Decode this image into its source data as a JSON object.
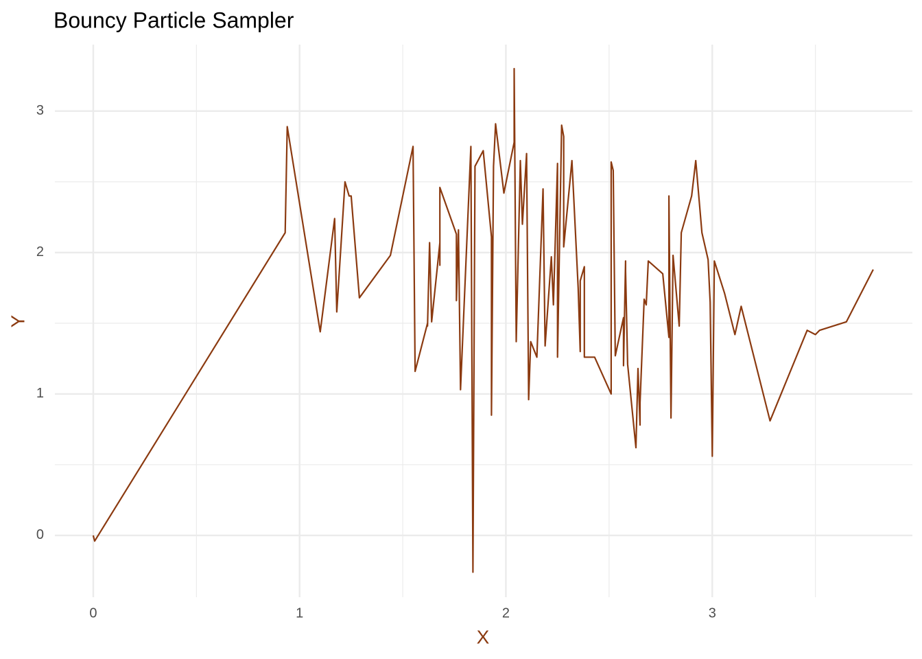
{
  "chart_data": {
    "type": "line",
    "title": "Bouncy Particle Sampler",
    "x_label": "X",
    "y_label": "Y",
    "x": [
      0,
      0.007,
      0.93,
      0.94,
      1.1,
      1.17,
      1.18,
      1.22,
      1.24,
      1.25,
      1.29,
      1.44,
      1.55,
      1.56,
      1.62,
      1.62,
      1.63,
      1.64,
      1.68,
      1.68,
      1.68,
      1.76,
      1.76,
      1.77,
      1.78,
      1.83,
      1.84,
      1.85,
      1.89,
      1.93,
      1.93,
      1.94,
      1.95,
      1.99,
      2.04,
      2.04,
      2.05,
      2.07,
      2.08,
      2.1,
      2.11,
      2.12,
      2.15,
      2.18,
      2.19,
      2.22,
      2.23,
      2.25,
      2.25,
      2.27,
      2.28,
      2.28,
      2.32,
      2.35,
      2.36,
      2.36,
      2.38,
      2.38,
      2.43,
      2.51,
      2.51,
      2.52,
      2.53,
      2.57,
      2.57,
      2.58,
      2.58,
      2.59,
      2.63,
      2.64,
      2.65,
      2.65,
      2.67,
      2.68,
      2.69,
      2.76,
      2.79,
      2.79,
      2.8,
      2.81,
      2.84,
      2.85,
      2.9,
      2.92,
      2.95,
      2.98,
      2.99,
      3.0,
      3.01,
      3.06,
      3.11,
      3.14,
      3.28,
      3.46,
      3.5,
      3.52,
      3.65,
      3.78
    ],
    "series": [
      {
        "name": "Y",
        "color": "#8b3a10",
        "values": [
          0,
          -0.04,
          2.14,
          2.89,
          1.44,
          2.24,
          1.58,
          2.5,
          2.4,
          2.4,
          1.68,
          1.98,
          2.75,
          1.16,
          1.5,
          1.48,
          2.07,
          1.51,
          2.07,
          1.91,
          2.46,
          2.13,
          1.66,
          2.16,
          1.03,
          2.75,
          -0.26,
          2.61,
          2.72,
          2.11,
          0.85,
          2.61,
          2.91,
          2.42,
          2.78,
          3.3,
          1.37,
          2.65,
          2.2,
          2.7,
          0.96,
          1.37,
          1.26,
          2.45,
          1.34,
          1.97,
          1.63,
          2.63,
          1.26,
          2.9,
          2.82,
          2.04,
          2.65,
          1.75,
          1.3,
          1.8,
          1.9,
          1.26,
          1.26,
          1.0,
          2.64,
          2.58,
          1.27,
          1.54,
          1.2,
          1.94,
          1.87,
          1.21,
          0.62,
          1.18,
          0.78,
          0.94,
          1.67,
          1.63,
          1.94,
          1.85,
          1.4,
          2.4,
          0.83,
          1.98,
          1.48,
          2.14,
          2.4,
          2.65,
          2.14,
          1.95,
          1.65,
          0.56,
          1.94,
          1.71,
          1.42,
          1.62,
          0.81,
          1.45,
          1.42,
          1.45,
          1.51,
          1.88
        ]
      }
    ],
    "xlim": [
      -0.186,
      3.97
    ],
    "ylim": [
      -0.437,
      3.47
    ],
    "xticks": [
      0,
      1,
      2,
      3
    ],
    "yticks": [
      0,
      1,
      2,
      3
    ],
    "grid": true,
    "minor_grid": true
  }
}
